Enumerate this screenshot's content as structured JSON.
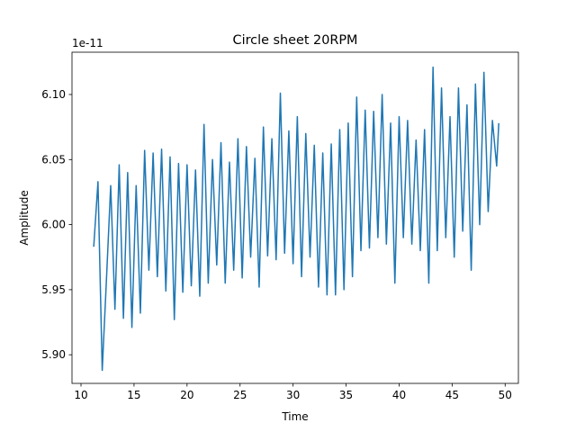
{
  "chart_data": {
    "type": "line",
    "title": "Circle sheet 20RPM",
    "x_label": "Time",
    "y_label": "Amplitude",
    "y_offset_label": "1e-11",
    "xlim": [
      9.15,
      51.25
    ],
    "ylim": [
      5.878,
      6.1325
    ],
    "xticks": [
      10,
      15,
      20,
      25,
      30,
      35,
      40,
      45,
      50
    ],
    "yticks": [
      {
        "value": 5.9,
        "label": "5.90"
      },
      5.95,
      {
        "value": 6.0,
        "label": "6.00"
      },
      6.05,
      {
        "value": 6.1,
        "label": "6.10"
      }
    ],
    "grid": false,
    "x": [
      11.2,
      11.6,
      12,
      12.4,
      12.8,
      13.2,
      13.6,
      14,
      14.4,
      14.8,
      15.2,
      15.6,
      16,
      16.4,
      16.8,
      17.2,
      17.6,
      18,
      18.4,
      18.8,
      19.2,
      19.6,
      20,
      20.4,
      20.8,
      21.2,
      21.6,
      22,
      22.4,
      22.8,
      23.2,
      23.6,
      24,
      24.4,
      24.8,
      25.2,
      25.6,
      26,
      26.4,
      26.8,
      27.2,
      27.6,
      28,
      28.4,
      28.8,
      29.2,
      29.6,
      30,
      30.4,
      30.8,
      31.2,
      31.6,
      32,
      32.4,
      32.8,
      33.2,
      33.6,
      34,
      34.4,
      34.8,
      35.2,
      35.6,
      36,
      36.4,
      36.8,
      37.2,
      37.6,
      38,
      38.4,
      38.8,
      39.2,
      39.6,
      40,
      40.4,
      40.8,
      41.2,
      41.6,
      42,
      42.4,
      42.8,
      43.2,
      43.6,
      44,
      44.4,
      44.8,
      45.2,
      45.6,
      46,
      46.4,
      46.8,
      47.2,
      47.6,
      48,
      48.4,
      48.8,
      49.2,
      49.4
    ],
    "series": [
      {
        "color": "#1f77b4",
        "values": [
          5.983,
          6.033,
          5.888,
          5.958,
          6.03,
          5.935,
          6.046,
          5.928,
          6.04,
          5.921,
          6.03,
          5.932,
          6.057,
          5.965,
          6.055,
          5.96,
          6.058,
          5.949,
          6.052,
          5.927,
          6.047,
          5.948,
          6.046,
          5.953,
          6.042,
          5.945,
          6.077,
          5.955,
          6.05,
          5.969,
          6.063,
          5.955,
          6.048,
          5.965,
          6.066,
          5.959,
          6.06,
          5.975,
          6.051,
          5.952,
          6.075,
          5.976,
          6.066,
          5.973,
          6.101,
          5.978,
          6.072,
          5.97,
          6.083,
          5.96,
          6.07,
          5.975,
          6.061,
          5.952,
          6.055,
          5.946,
          6.062,
          5.946,
          6.073,
          5.95,
          6.078,
          5.96,
          6.098,
          5.98,
          6.088,
          5.982,
          6.087,
          5.99,
          6.1,
          5.985,
          6.078,
          5.955,
          6.083,
          5.99,
          6.08,
          5.985,
          6.065,
          5.98,
          6.073,
          5.955,
          6.121,
          5.98,
          6.105,
          5.99,
          6.083,
          5.975,
          6.105,
          5.995,
          6.092,
          5.965,
          6.108,
          6.0,
          6.117,
          6.01,
          6.08,
          6.045,
          6.078
        ]
      }
    ]
  }
}
